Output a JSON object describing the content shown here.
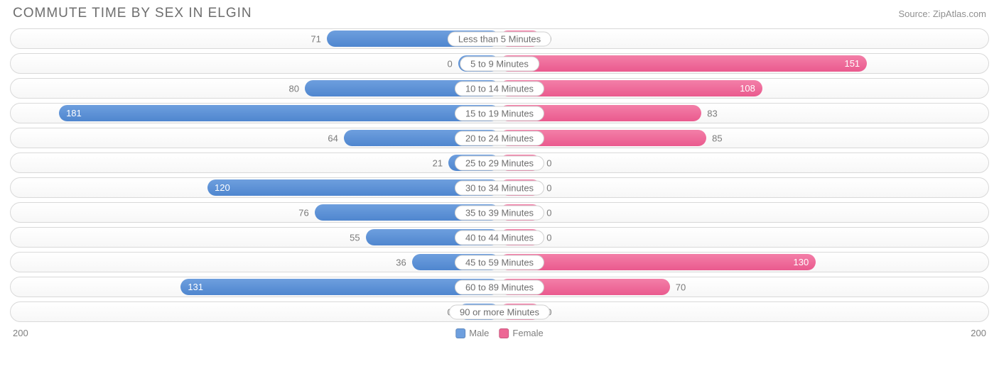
{
  "title": "COMMUTE TIME BY SEX IN ELGIN",
  "source": "Source: ZipAtlas.com",
  "axis_max": 200,
  "axis_left_label": "200",
  "axis_right_label": "200",
  "min_bar_pct": 8.5,
  "inside_threshold": 100,
  "colors": {
    "male_fill": "#6e9fde",
    "male_fill_dark": "#4f86cf",
    "female_fill": "#f37fa8",
    "female_fill_dark": "#ea5a8e",
    "track_border": "#d9d9d9",
    "text_muted": "#7a7a7a",
    "title_color": "#6e6e6e"
  },
  "legend": [
    {
      "label": "Male",
      "color": "#6e9fde"
    },
    {
      "label": "Female",
      "color": "#ed6795"
    }
  ],
  "rows": [
    {
      "category": "Less than 5 Minutes",
      "male": 71,
      "female": 0
    },
    {
      "category": "5 to 9 Minutes",
      "male": 0,
      "female": 151
    },
    {
      "category": "10 to 14 Minutes",
      "male": 80,
      "female": 108
    },
    {
      "category": "15 to 19 Minutes",
      "male": 181,
      "female": 83
    },
    {
      "category": "20 to 24 Minutes",
      "male": 64,
      "female": 85
    },
    {
      "category": "25 to 29 Minutes",
      "male": 21,
      "female": 0
    },
    {
      "category": "30 to 34 Minutes",
      "male": 120,
      "female": 0
    },
    {
      "category": "35 to 39 Minutes",
      "male": 76,
      "female": 0
    },
    {
      "category": "40 to 44 Minutes",
      "male": 55,
      "female": 0
    },
    {
      "category": "45 to 59 Minutes",
      "male": 36,
      "female": 130
    },
    {
      "category": "60 to 89 Minutes",
      "male": 131,
      "female": 70
    },
    {
      "category": "90 or more Minutes",
      "male": 0,
      "female": 0
    }
  ]
}
